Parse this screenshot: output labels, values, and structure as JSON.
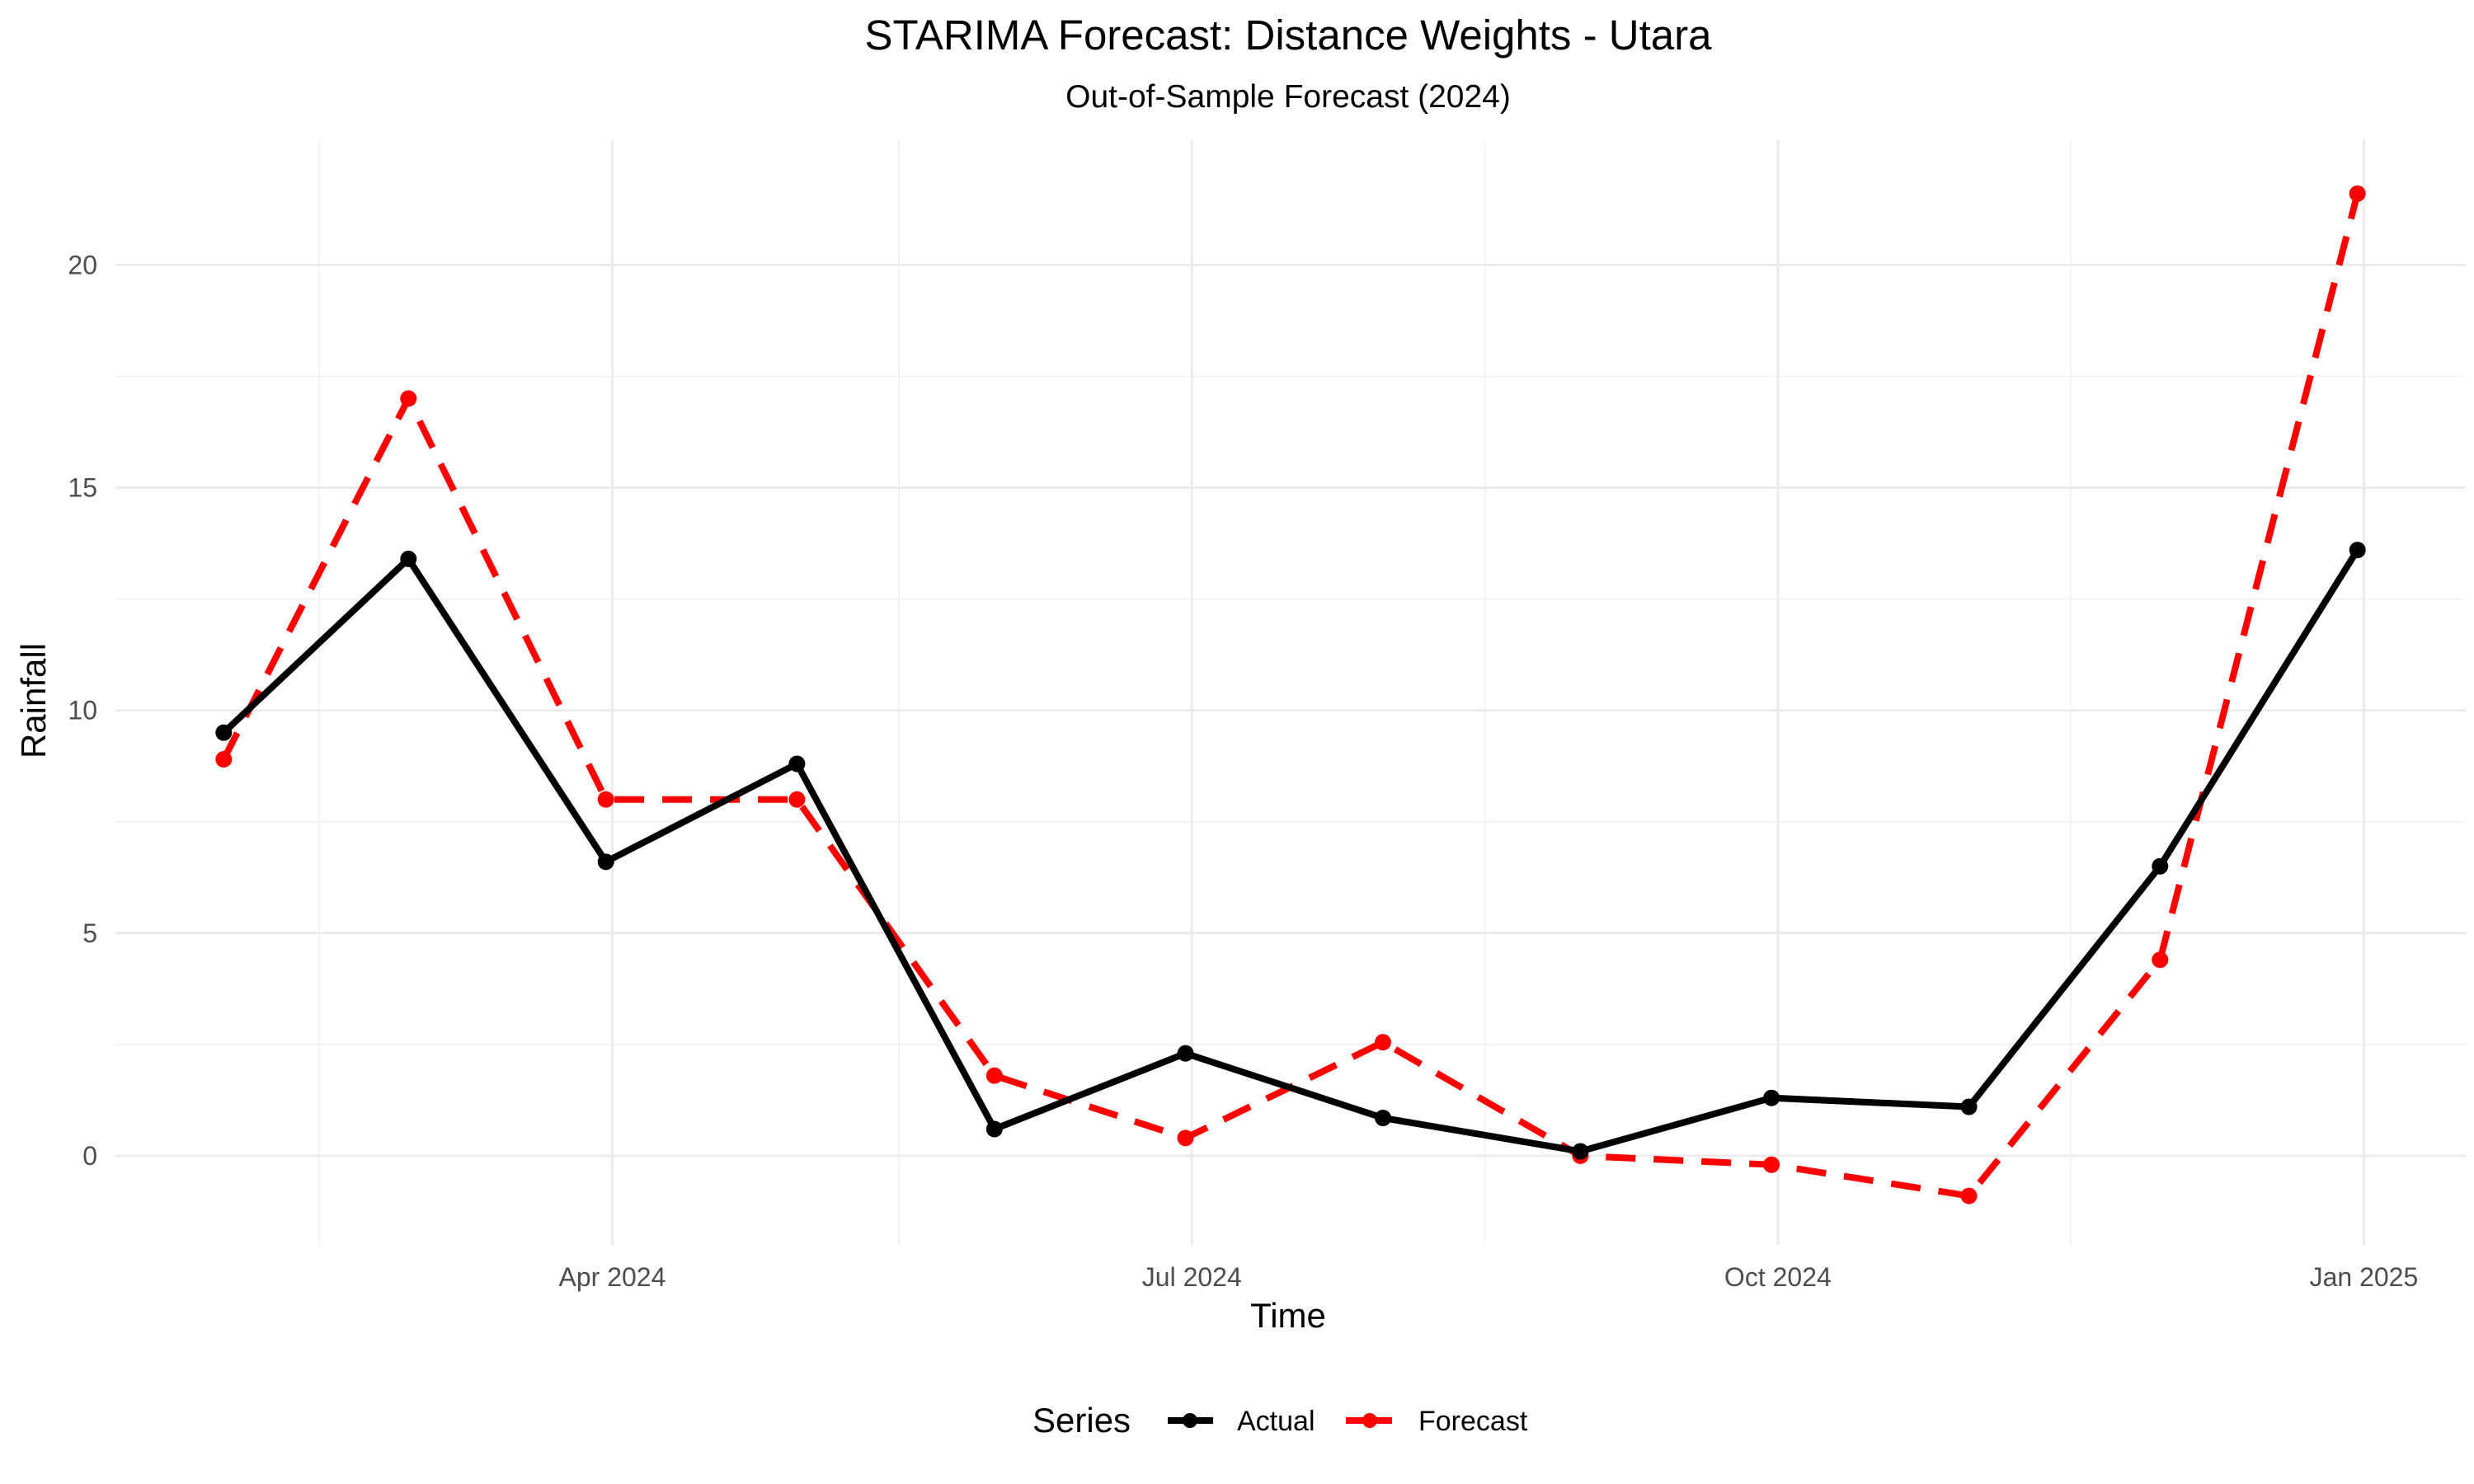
{
  "chart_data": {
    "type": "line",
    "title": "STARIMA Forecast: Distance Weights - Utara",
    "subtitle": "Out-of-Sample Forecast (2024)",
    "xlabel": "Time",
    "ylabel": "Rainfall",
    "x": [
      "2024-01-31",
      "2024-02-29",
      "2024-03-31",
      "2024-04-30",
      "2024-05-31",
      "2024-06-30",
      "2024-07-31",
      "2024-08-31",
      "2024-09-30",
      "2024-10-31",
      "2024-11-30",
      "2024-12-31"
    ],
    "xlim": [
      "2024-01-14",
      "2025-01-17"
    ],
    "ylim": [
      -2.0,
      22.8
    ],
    "x_ticks": [
      {
        "date": "2024-04-01",
        "label": "Apr 2024"
      },
      {
        "date": "2024-07-01",
        "label": "Jul 2024"
      },
      {
        "date": "2024-10-01",
        "label": "Oct 2024"
      },
      {
        "date": "2025-01-01",
        "label": "Jan 2025"
      }
    ],
    "x_minor_ticks": [
      "2024-02-15",
      "2024-05-16",
      "2024-08-16",
      "2024-11-16"
    ],
    "y_ticks": [
      0,
      5,
      10,
      15,
      20
    ],
    "y_minor_ticks": [
      2.5,
      7.5,
      12.5,
      17.5
    ],
    "grid": true,
    "legend": {
      "title": "Series",
      "position": "bottom"
    },
    "series": [
      {
        "name": "Actual",
        "color": "#000000",
        "dash": "solid",
        "values": [
          9.5,
          13.4,
          6.6,
          8.8,
          0.6,
          2.3,
          0.85,
          0.1,
          1.3,
          1.1,
          6.5,
          13.6
        ]
      },
      {
        "name": "Forecast",
        "color": "#ff0000",
        "dash": "dashed",
        "values": [
          8.9,
          17.0,
          8.0,
          8.0,
          1.8,
          0.4,
          2.55,
          0.0,
          -0.2,
          -0.9,
          4.4,
          21.6
        ]
      }
    ]
  }
}
